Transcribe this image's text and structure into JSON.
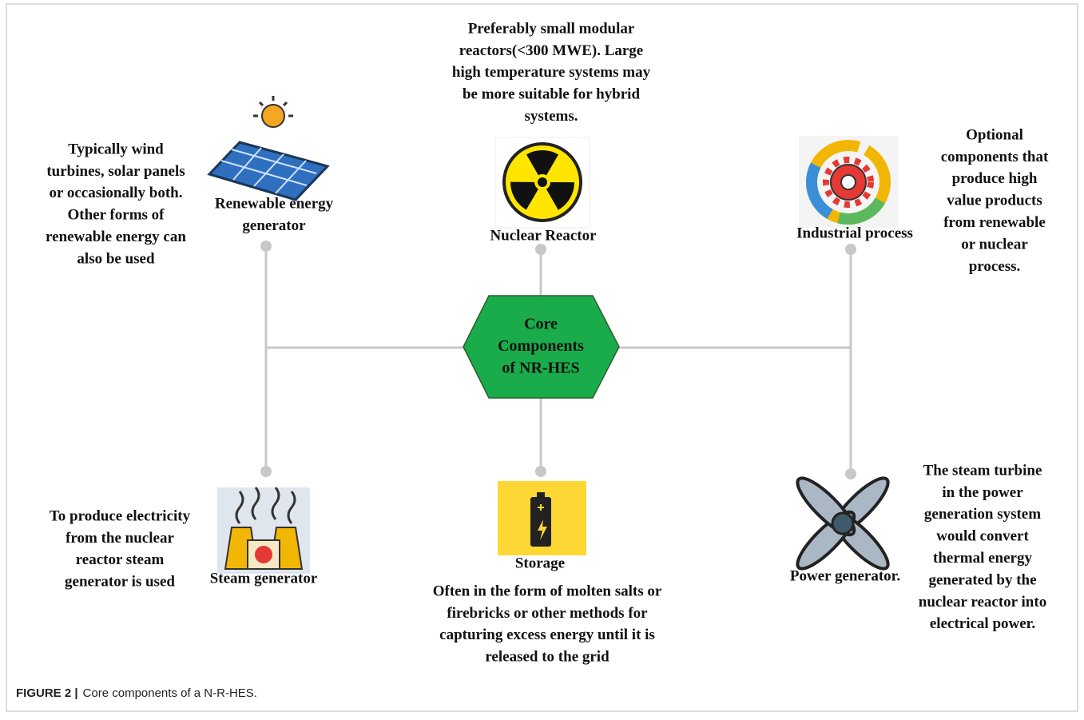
{
  "center": {
    "lines": [
      "Core",
      "Components",
      "of NR-HES"
    ]
  },
  "components": [
    {
      "label": [
        "Renewable energy",
        "generator"
      ],
      "description": [
        "Typically wind",
        "turbines, solar panels",
        "or occasionally both.",
        "Other forms of",
        "renewable energy can",
        "also be used"
      ]
    },
    {
      "label": [
        "Nuclear Reactor"
      ],
      "description": [
        "Preferably small modular",
        "reactors(<300 MWE). Large",
        "high temperature systems may",
        "be more suitable for hybrid",
        "systems."
      ]
    },
    {
      "label": [
        "Industrial process"
      ],
      "description": [
        "Optional",
        "components that",
        "produce high",
        "value products",
        "from renewable",
        "or nuclear",
        "process."
      ]
    },
    {
      "label": [
        "Steam generator"
      ],
      "description": [
        "To produce electricity",
        "from the nuclear",
        "reactor steam",
        "generator is used"
      ]
    },
    {
      "label": [
        "Storage"
      ],
      "description": [
        "Often in the form of molten salts or",
        "firebricks or other methods for",
        "capturing  excess energy until it is",
        "released to the grid"
      ]
    },
    {
      "label": [
        "Power generator."
      ],
      "description": [
        "The steam turbine",
        "in the power",
        "generation system",
        "would convert",
        "thermal energy",
        "generated by the",
        "nuclear reactor into",
        "electrical power."
      ]
    }
  ],
  "caption": {
    "label": "FIGURE 2 |",
    "text": "Core components of a N-R-HES."
  }
}
